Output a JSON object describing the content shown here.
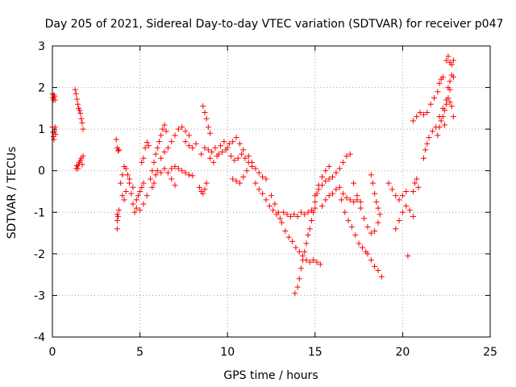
{
  "chart_data": {
    "type": "scatter",
    "title": "Day 205 of 2021, Sidereal Day-to-day VTEC variation (SDTVAR) for receiver p047",
    "xlabel": "GPS time / hours",
    "ylabel": "SDTVAR / TECUs",
    "xlim": [
      0,
      25
    ],
    "ylim": [
      -4,
      3
    ],
    "xticks": [
      0,
      5,
      10,
      15,
      20,
      25
    ],
    "yticks": [
      -4,
      -3,
      -2,
      -1,
      0,
      1,
      2,
      3
    ],
    "grid": true,
    "marker": "+",
    "color": "#ff0000",
    "series": [
      {
        "name": "SDTVAR",
        "points": [
          [
            0.0,
            1.85
          ],
          [
            0.03,
            1.75
          ],
          [
            0.06,
            1.7
          ],
          [
            0.09,
            1.82
          ],
          [
            0.12,
            1.78
          ],
          [
            0.15,
            1.7
          ],
          [
            0.0,
            1.05
          ],
          [
            0.03,
            0.92
          ],
          [
            0.06,
            0.82
          ],
          [
            0.09,
            0.75
          ],
          [
            0.12,
            0.95
          ],
          [
            0.15,
            1.05
          ],
          [
            0.18,
            0.88
          ],
          [
            1.3,
            1.95
          ],
          [
            1.35,
            1.85
          ],
          [
            1.4,
            1.72
          ],
          [
            1.45,
            1.6
          ],
          [
            1.5,
            1.5
          ],
          [
            1.55,
            1.45
          ],
          [
            1.6,
            1.38
          ],
          [
            1.65,
            1.25
          ],
          [
            1.7,
            1.15
          ],
          [
            1.75,
            1.0
          ],
          [
            1.35,
            0.05
          ],
          [
            1.4,
            0.12
          ],
          [
            1.45,
            0.05
          ],
          [
            1.5,
            0.15
          ],
          [
            1.55,
            0.2
          ],
          [
            1.6,
            0.25
          ],
          [
            1.65,
            0.3
          ],
          [
            1.7,
            0.15
          ],
          [
            1.75,
            0.35
          ],
          [
            3.7,
            -1.4
          ],
          [
            3.7,
            -1.2
          ],
          [
            3.7,
            -1.05
          ],
          [
            3.75,
            -1.1
          ],
          [
            3.8,
            -0.95
          ],
          [
            3.65,
            0.75
          ],
          [
            3.7,
            0.55
          ],
          [
            3.75,
            0.48
          ],
          [
            3.8,
            0.5
          ],
          [
            3.9,
            -0.3
          ],
          [
            4.0,
            -0.1
          ],
          [
            4.1,
            0.1
          ],
          [
            4.2,
            0.05
          ],
          [
            4.3,
            -0.1
          ],
          [
            4.4,
            -0.3
          ],
          [
            4.5,
            -0.55
          ],
          [
            4.6,
            -0.8
          ],
          [
            4.7,
            -1.0
          ],
          [
            4.8,
            -0.9
          ],
          [
            4.9,
            -0.6
          ],
          [
            5.0,
            -0.5
          ],
          [
            5.1,
            -0.4
          ],
          [
            5.2,
            -0.3
          ],
          [
            4.0,
            -0.6
          ],
          [
            4.1,
            -0.7
          ],
          [
            4.2,
            -0.5
          ],
          [
            4.4,
            -0.2
          ],
          [
            4.6,
            -0.4
          ],
          [
            4.8,
            -0.7
          ],
          [
            5.0,
            -0.95
          ],
          [
            5.2,
            -0.8
          ],
          [
            5.4,
            -0.6
          ],
          [
            5.1,
            0.2
          ],
          [
            5.2,
            0.3
          ],
          [
            5.3,
            0.55
          ],
          [
            5.4,
            0.68
          ],
          [
            5.5,
            0.6
          ],
          [
            5.6,
            -0.2
          ],
          [
            5.7,
            0.0
          ],
          [
            5.8,
            0.2
          ],
          [
            5.9,
            0.4
          ],
          [
            6.0,
            0.55
          ],
          [
            6.1,
            0.7
          ],
          [
            6.2,
            0.85
          ],
          [
            6.3,
            1.0
          ],
          [
            6.4,
            1.1
          ],
          [
            6.5,
            0.95
          ],
          [
            5.7,
            -0.4
          ],
          [
            5.8,
            -0.3
          ],
          [
            5.9,
            -0.1
          ],
          [
            6.0,
            0.0
          ],
          [
            6.2,
            -0.05
          ],
          [
            6.4,
            0.05
          ],
          [
            6.6,
            -0.05
          ],
          [
            6.8,
            -0.2
          ],
          [
            7.0,
            -0.35
          ],
          [
            6.2,
            0.3
          ],
          [
            6.4,
            0.45
          ],
          [
            6.6,
            0.55
          ],
          [
            6.8,
            0.7
          ],
          [
            7.0,
            0.85
          ],
          [
            7.2,
            1.0
          ],
          [
            7.4,
            1.05
          ],
          [
            7.6,
            0.95
          ],
          [
            7.8,
            0.85
          ],
          [
            6.8,
            0.05
          ],
          [
            7.0,
            0.1
          ],
          [
            7.2,
            0.05
          ],
          [
            7.4,
            0.0
          ],
          [
            7.6,
            -0.05
          ],
          [
            7.8,
            -0.1
          ],
          [
            8.0,
            -0.12
          ],
          [
            7.6,
            0.7
          ],
          [
            7.8,
            0.6
          ],
          [
            8.0,
            0.55
          ],
          [
            8.2,
            0.65
          ],
          [
            8.6,
            1.55
          ],
          [
            8.7,
            1.4
          ],
          [
            8.8,
            1.25
          ],
          [
            8.9,
            1.05
          ],
          [
            9.0,
            0.9
          ],
          [
            8.4,
            -0.4
          ],
          [
            8.5,
            -0.5
          ],
          [
            8.6,
            -0.55
          ],
          [
            8.7,
            -0.45
          ],
          [
            8.8,
            -0.3
          ],
          [
            8.5,
            0.4
          ],
          [
            8.7,
            0.55
          ],
          [
            8.9,
            0.5
          ],
          [
            9.1,
            0.45
          ],
          [
            9.3,
            0.55
          ],
          [
            9.5,
            0.4
          ],
          [
            9.7,
            0.45
          ],
          [
            9.9,
            0.5
          ],
          [
            10.1,
            0.65
          ],
          [
            10.3,
            0.7
          ],
          [
            10.5,
            0.8
          ],
          [
            10.7,
            0.65
          ],
          [
            10.9,
            0.5
          ],
          [
            9.0,
            0.3
          ],
          [
            9.2,
            0.2
          ],
          [
            9.4,
            0.35
          ],
          [
            9.6,
            0.6
          ],
          [
            9.8,
            0.7
          ],
          [
            10.0,
            0.55
          ],
          [
            10.2,
            0.35
          ],
          [
            10.4,
            0.25
          ],
          [
            10.6,
            0.3
          ],
          [
            10.8,
            0.4
          ],
          [
            11.0,
            0.3
          ],
          [
            11.2,
            0.2
          ],
          [
            11.4,
            0.1
          ],
          [
            10.3,
            -0.2
          ],
          [
            10.5,
            -0.25
          ],
          [
            10.7,
            -0.3
          ],
          [
            10.9,
            -0.15
          ],
          [
            11.1,
            0.0
          ],
          [
            11.2,
            0.35
          ],
          [
            11.4,
            0.2
          ],
          [
            11.6,
            0.05
          ],
          [
            11.8,
            -0.05
          ],
          [
            12.0,
            -0.15
          ],
          [
            12.2,
            -0.2
          ],
          [
            11.6,
            -0.3
          ],
          [
            11.8,
            -0.45
          ],
          [
            12.0,
            -0.55
          ],
          [
            12.2,
            -0.7
          ],
          [
            12.4,
            -0.85
          ],
          [
            12.6,
            -0.95
          ],
          [
            12.8,
            -1.05
          ],
          [
            13.0,
            -1.15
          ],
          [
            12.5,
            -0.6
          ],
          [
            12.7,
            -0.8
          ],
          [
            12.9,
            -1.0
          ],
          [
            13.1,
            -1.25
          ],
          [
            13.3,
            -1.45
          ],
          [
            13.5,
            -1.6
          ],
          [
            13.7,
            -1.7
          ],
          [
            13.9,
            -1.85
          ],
          [
            14.1,
            -1.95
          ],
          [
            14.3,
            -2.05
          ],
          [
            14.5,
            -2.15
          ],
          [
            14.7,
            -2.2
          ],
          [
            14.9,
            -2.15
          ],
          [
            15.1,
            -2.2
          ],
          [
            15.3,
            -2.25
          ],
          [
            13.2,
            -1.0
          ],
          [
            13.4,
            -1.05
          ],
          [
            13.6,
            -1.1
          ],
          [
            13.8,
            -1.05
          ],
          [
            14.0,
            -1.1
          ],
          [
            14.2,
            -1.0
          ],
          [
            14.4,
            -1.05
          ],
          [
            14.6,
            -1.0
          ],
          [
            14.8,
            -0.95
          ],
          [
            15.0,
            -0.9
          ],
          [
            13.85,
            -2.95
          ],
          [
            14.0,
            -2.8
          ],
          [
            14.1,
            -2.6
          ],
          [
            14.2,
            -2.35
          ],
          [
            14.3,
            -2.15
          ],
          [
            14.4,
            -1.95
          ],
          [
            14.5,
            -1.75
          ],
          [
            14.6,
            -1.55
          ],
          [
            14.7,
            -1.4
          ],
          [
            14.8,
            -1.2
          ],
          [
            14.9,
            -1.0
          ],
          [
            15.0,
            -0.75
          ],
          [
            15.1,
            -0.55
          ],
          [
            15.2,
            -0.35
          ],
          [
            15.4,
            -0.15
          ],
          [
            15.6,
            0.0
          ],
          [
            15.8,
            0.1
          ],
          [
            15.0,
            -0.6
          ],
          [
            15.2,
            -0.45
          ],
          [
            15.4,
            -0.35
          ],
          [
            15.6,
            -0.25
          ],
          [
            15.8,
            -0.2
          ],
          [
            16.0,
            -0.15
          ],
          [
            16.2,
            -0.05
          ],
          [
            16.4,
            0.05
          ],
          [
            16.6,
            0.2
          ],
          [
            16.8,
            0.35
          ],
          [
            17.0,
            0.4
          ],
          [
            15.4,
            -0.85
          ],
          [
            15.6,
            -0.7
          ],
          [
            15.8,
            -0.6
          ],
          [
            16.0,
            -0.55
          ],
          [
            16.2,
            -0.45
          ],
          [
            16.4,
            -0.4
          ],
          [
            16.6,
            -0.55
          ],
          [
            16.8,
            -0.65
          ],
          [
            17.0,
            -0.7
          ],
          [
            17.2,
            -0.75
          ],
          [
            17.4,
            -0.7
          ],
          [
            17.6,
            -0.75
          ],
          [
            16.5,
            -0.7
          ],
          [
            16.7,
            -1.0
          ],
          [
            16.9,
            -1.2
          ],
          [
            17.1,
            -1.35
          ],
          [
            17.3,
            -1.55
          ],
          [
            17.5,
            -1.75
          ],
          [
            17.7,
            -1.85
          ],
          [
            17.9,
            -1.95
          ],
          [
            17.2,
            -0.3
          ],
          [
            17.4,
            -0.6
          ],
          [
            17.6,
            -0.9
          ],
          [
            17.8,
            -1.15
          ],
          [
            18.0,
            -1.35
          ],
          [
            18.2,
            -1.5
          ],
          [
            18.4,
            -1.45
          ],
          [
            18.6,
            -1.25
          ],
          [
            18.2,
            -0.1
          ],
          [
            18.3,
            -0.3
          ],
          [
            18.4,
            -0.55
          ],
          [
            18.5,
            -0.75
          ],
          [
            18.6,
            -0.9
          ],
          [
            18.7,
            -1.05
          ],
          [
            18.0,
            -2.0
          ],
          [
            18.2,
            -2.15
          ],
          [
            18.4,
            -2.3
          ],
          [
            18.6,
            -2.4
          ],
          [
            18.8,
            -2.55
          ],
          [
            19.2,
            -0.3
          ],
          [
            19.4,
            -0.45
          ],
          [
            19.6,
            -0.6
          ],
          [
            19.8,
            -0.7
          ],
          [
            20.0,
            -0.6
          ],
          [
            20.2,
            -0.5
          ],
          [
            19.6,
            -1.4
          ],
          [
            19.8,
            -1.2
          ],
          [
            20.0,
            -1.0
          ],
          [
            20.2,
            -0.85
          ],
          [
            20.4,
            -0.95
          ],
          [
            20.6,
            -1.1
          ],
          [
            20.3,
            -2.05
          ],
          [
            20.6,
            -0.5
          ],
          [
            20.7,
            -0.3
          ],
          [
            20.8,
            -0.2
          ],
          [
            20.9,
            -0.4
          ],
          [
            20.6,
            1.2
          ],
          [
            20.8,
            1.3
          ],
          [
            21.0,
            1.4
          ],
          [
            21.2,
            1.35
          ],
          [
            21.2,
            0.3
          ],
          [
            21.3,
            0.5
          ],
          [
            21.4,
            0.65
          ],
          [
            21.5,
            0.8
          ],
          [
            21.7,
            0.95
          ],
          [
            21.9,
            1.05
          ],
          [
            22.1,
            1.3
          ],
          [
            22.3,
            1.5
          ],
          [
            22.5,
            1.7
          ],
          [
            22.7,
            1.95
          ],
          [
            21.4,
            1.4
          ],
          [
            21.6,
            1.6
          ],
          [
            21.8,
            1.75
          ],
          [
            22.0,
            1.9
          ],
          [
            22.1,
            2.1
          ],
          [
            22.2,
            2.2
          ],
          [
            22.3,
            2.25
          ],
          [
            22.0,
            0.85
          ],
          [
            22.1,
            1.05
          ],
          [
            22.2,
            1.2
          ],
          [
            22.3,
            1.3
          ],
          [
            22.4,
            1.1
          ],
          [
            22.4,
            1.45
          ],
          [
            22.5,
            1.6
          ],
          [
            22.6,
            1.75
          ],
          [
            22.7,
            1.65
          ],
          [
            22.8,
            1.55
          ],
          [
            22.9,
            1.3
          ],
          [
            22.5,
            2.65
          ],
          [
            22.6,
            2.75
          ],
          [
            22.7,
            2.6
          ],
          [
            22.8,
            2.55
          ],
          [
            22.9,
            2.65
          ],
          [
            22.6,
            2.0
          ],
          [
            22.7,
            2.15
          ],
          [
            22.8,
            2.3
          ],
          [
            22.9,
            2.25
          ]
        ]
      }
    ]
  }
}
